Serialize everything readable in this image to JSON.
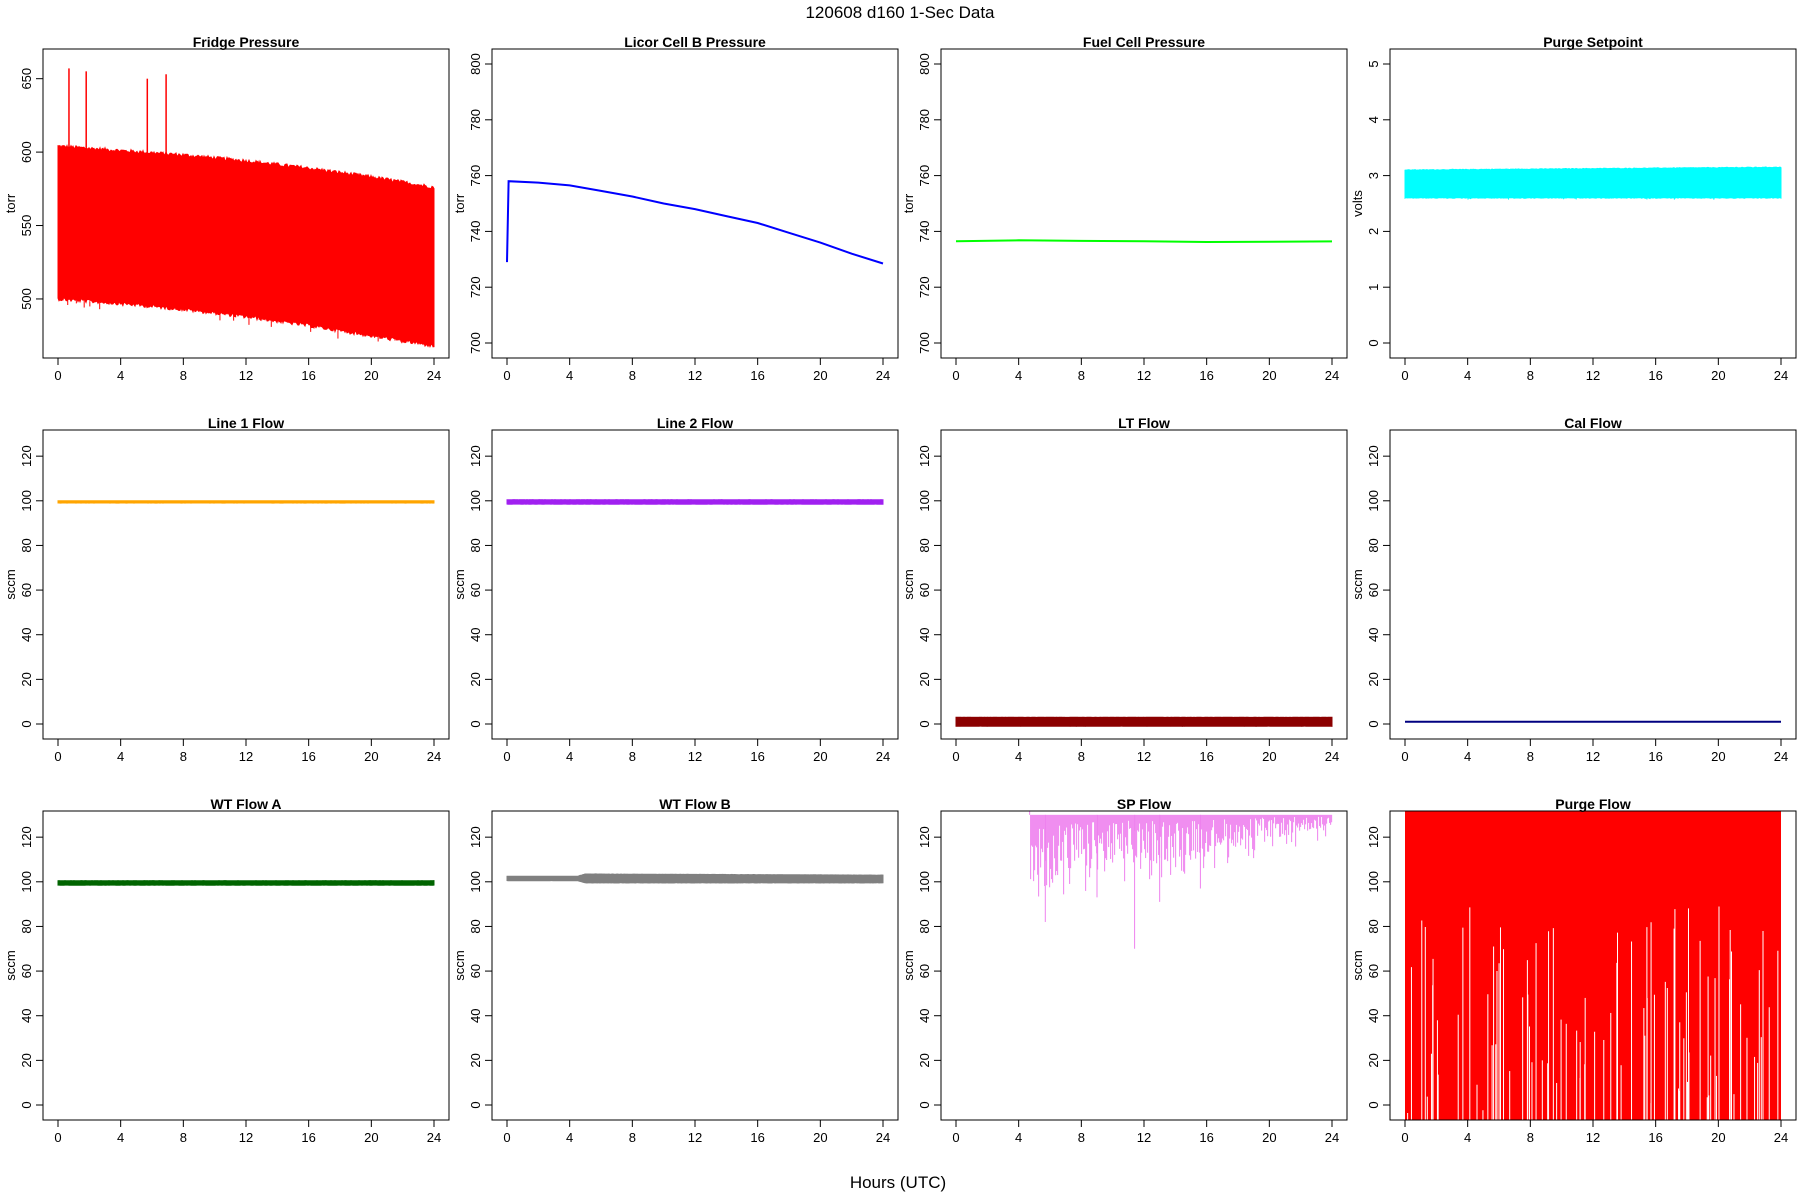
{
  "title": "120608   d160   1-Sec Data",
  "xlabel": "Hours (UTC)",
  "chart_data": [
    {
      "type": "line",
      "title": "Fridge Pressure",
      "ylabel": "torr",
      "xlim": [
        0,
        24
      ],
      "ylim": [
        470,
        660
      ],
      "x_ticks": [
        0,
        4,
        8,
        12,
        16,
        20,
        24
      ],
      "y_ticks": [
        500,
        550,
        600,
        650
      ],
      "color": "#ff0000",
      "band": {
        "x": [
          0,
          4,
          8,
          12,
          16,
          20,
          24
        ],
        "low": [
          500,
          497,
          493,
          488,
          482,
          475,
          468
        ],
        "high": [
          604,
          601,
          598,
          594,
          589,
          583,
          576
        ]
      },
      "spikes": [
        {
          "x": 0.7,
          "y": 657
        },
        {
          "x": 1.8,
          "y": 655
        },
        {
          "x": 5.7,
          "y": 650
        },
        {
          "x": 6.9,
          "y": 653
        }
      ]
    },
    {
      "type": "line",
      "title": "Licor Cell B Pressure",
      "ylabel": "torr",
      "xlim": [
        0,
        24
      ],
      "ylim": [
        700,
        800
      ],
      "x_ticks": [
        0,
        4,
        8,
        12,
        16,
        20,
        24
      ],
      "y_ticks": [
        700,
        720,
        740,
        760,
        780,
        800
      ],
      "color": "#0000ff",
      "x": [
        0,
        0.1,
        2,
        4,
        6,
        8,
        10,
        12,
        14,
        16,
        18,
        20,
        22,
        24
      ],
      "y": [
        729,
        758,
        757.5,
        756.5,
        754.5,
        752.5,
        750,
        748,
        745.5,
        743,
        739.5,
        736,
        732,
        728.5
      ]
    },
    {
      "type": "line",
      "title": "Fuel Cell Pressure",
      "ylabel": "torr",
      "xlim": [
        0,
        24
      ],
      "ylim": [
        700,
        800
      ],
      "x_ticks": [
        0,
        4,
        8,
        12,
        16,
        20,
        24
      ],
      "y_ticks": [
        700,
        720,
        740,
        760,
        780,
        800
      ],
      "color": "#00ff00",
      "x": [
        0,
        4,
        8,
        12,
        16,
        20,
        24
      ],
      "y": [
        736.5,
        736.8,
        736.6,
        736.5,
        736.2,
        736.3,
        736.4
      ]
    },
    {
      "type": "area",
      "title": "Purge Setpoint",
      "ylabel": "volts",
      "xlim": [
        0,
        24
      ],
      "ylim": [
        0,
        5
      ],
      "x_ticks": [
        0,
        4,
        8,
        12,
        16,
        20,
        24
      ],
      "y_ticks": [
        0,
        1,
        2,
        3,
        4,
        5
      ],
      "color": "#00ffff",
      "band": {
        "x": [
          0,
          24
        ],
        "low": [
          2.6,
          2.6
        ],
        "high": [
          3.1,
          3.15
        ]
      }
    },
    {
      "type": "line",
      "title": "Line 1 Flow",
      "ylabel": "sccm",
      "xlim": [
        0,
        24
      ],
      "ylim": [
        0,
        125
      ],
      "x_ticks": [
        0,
        4,
        8,
        12,
        16,
        20,
        24
      ],
      "y_ticks": [
        0,
        20,
        40,
        60,
        80,
        100,
        120
      ],
      "color": "#ffa500",
      "band": {
        "x": [
          0,
          24
        ],
        "low": [
          99,
          99
        ],
        "high": [
          100,
          100
        ]
      }
    },
    {
      "type": "line",
      "title": "Line 2 Flow",
      "ylabel": "sccm",
      "xlim": [
        0,
        24
      ],
      "ylim": [
        0,
        125
      ],
      "x_ticks": [
        0,
        4,
        8,
        12,
        16,
        20,
        24
      ],
      "y_ticks": [
        0,
        20,
        40,
        60,
        80,
        100,
        120
      ],
      "color": "#a020f0",
      "band": {
        "x": [
          0,
          24
        ],
        "low": [
          98.5,
          98.5
        ],
        "high": [
          100.5,
          100.5
        ]
      }
    },
    {
      "type": "area",
      "title": "LT Flow",
      "ylabel": "sccm",
      "xlim": [
        0,
        24
      ],
      "ylim": [
        0,
        125
      ],
      "x_ticks": [
        0,
        4,
        8,
        12,
        16,
        20,
        24
      ],
      "y_ticks": [
        0,
        20,
        40,
        60,
        80,
        100,
        120
      ],
      "color": "#8b0000",
      "band": {
        "x": [
          0,
          24
        ],
        "low": [
          -1,
          -1
        ],
        "high": [
          3,
          3
        ]
      }
    },
    {
      "type": "line",
      "title": "Cal Flow",
      "ylabel": "sccm",
      "xlim": [
        0,
        24
      ],
      "ylim": [
        0,
        125
      ],
      "x_ticks": [
        0,
        4,
        8,
        12,
        16,
        20,
        24
      ],
      "y_ticks": [
        0,
        20,
        40,
        60,
        80,
        100,
        120
      ],
      "color": "#000080",
      "x": [
        0,
        24
      ],
      "y": [
        1,
        1
      ]
    },
    {
      "type": "line",
      "title": "WT Flow A",
      "ylabel": "sccm",
      "xlim": [
        0,
        24
      ],
      "ylim": [
        0,
        125
      ],
      "x_ticks": [
        0,
        4,
        8,
        12,
        16,
        20,
        24
      ],
      "y_ticks": [
        0,
        20,
        40,
        60,
        80,
        100,
        120
      ],
      "color": "#006400",
      "band": {
        "x": [
          0,
          24
        ],
        "low": [
          98.5,
          98.5
        ],
        "high": [
          100.5,
          100.5
        ]
      }
    },
    {
      "type": "line",
      "title": "WT Flow B",
      "ylabel": "sccm",
      "xlim": [
        0,
        24
      ],
      "ylim": [
        0,
        125
      ],
      "x_ticks": [
        0,
        4,
        8,
        12,
        16,
        20,
        24
      ],
      "y_ticks": [
        0,
        20,
        40,
        60,
        80,
        100,
        120
      ],
      "color": "#808080",
      "band": {
        "x": [
          0,
          4.5,
          5,
          24
        ],
        "low": [
          100.5,
          100.5,
          99.5,
          99.5
        ],
        "high": [
          102.5,
          102.5,
          103.5,
          103
        ]
      }
    },
    {
      "type": "line",
      "title": "SP Flow",
      "ylabel": "sccm",
      "xlim": [
        0,
        24
      ],
      "ylim": [
        0,
        125
      ],
      "x_ticks": [
        0,
        4,
        8,
        12,
        16,
        20,
        24
      ],
      "y_ticks": [
        0,
        20,
        40,
        60,
        80,
        100,
        120
      ],
      "color": "#ee82ee",
      "x_start": 4.7,
      "top": 130,
      "low_range": [
        100,
        125
      ],
      "dips": [
        {
          "x": 5.7,
          "y": 82
        },
        {
          "x": 11.4,
          "y": 70
        },
        {
          "x": 13,
          "y": 91
        },
        {
          "x": 9,
          "y": 93
        },
        {
          "x": 15.6,
          "y": 97
        }
      ]
    },
    {
      "type": "area",
      "title": "Purge Flow",
      "ylabel": "sccm",
      "xlim": [
        0,
        24
      ],
      "ylim": [
        0,
        125
      ],
      "x_ticks": [
        0,
        4,
        8,
        12,
        16,
        20,
        24
      ],
      "y_ticks": [
        0,
        20,
        40,
        60,
        80,
        100,
        120
      ],
      "color": "#ff0000",
      "top": 130,
      "low_range": [
        -5,
        90
      ]
    }
  ]
}
